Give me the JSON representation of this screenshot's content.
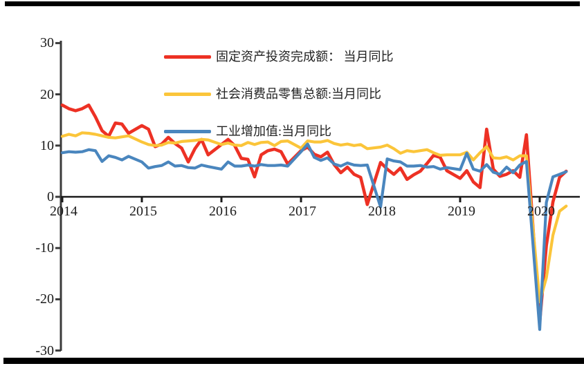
{
  "chart_data": {
    "type": "line",
    "title": "",
    "xlabel": "",
    "ylabel": "",
    "ylim": [
      -30,
      30
    ],
    "grid": false,
    "legend_position": "inside-top-left",
    "y_ticks": [
      "30",
      "20",
      "10",
      "0",
      "-10",
      "-20",
      "-30"
    ],
    "y_tick_values": [
      30,
      20,
      10,
      0,
      -10,
      -20,
      -30
    ],
    "x_ticks": [
      "2014",
      "2015",
      "2016",
      "2017",
      "2018",
      "2019",
      "2020"
    ],
    "x_tick_years": [
      2014,
      2015,
      2016,
      2017,
      2018,
      2019,
      2020
    ],
    "months": [
      "2014-02",
      "2014-03",
      "2014-04",
      "2014-05",
      "2014-06",
      "2014-07",
      "2014-08",
      "2014-09",
      "2014-10",
      "2014-11",
      "2014-12",
      "2015-02",
      "2015-03",
      "2015-04",
      "2015-05",
      "2015-06",
      "2015-07",
      "2015-08",
      "2015-09",
      "2015-10",
      "2015-11",
      "2015-12",
      "2016-02",
      "2016-03",
      "2016-04",
      "2016-05",
      "2016-06",
      "2016-07",
      "2016-08",
      "2016-09",
      "2016-10",
      "2016-11",
      "2016-12",
      "2017-02",
      "2017-03",
      "2017-04",
      "2017-05",
      "2017-06",
      "2017-07",
      "2017-08",
      "2017-09",
      "2017-10",
      "2017-11",
      "2017-12",
      "2018-02",
      "2018-03",
      "2018-04",
      "2018-05",
      "2018-06",
      "2018-07",
      "2018-08",
      "2018-09",
      "2018-10",
      "2018-11",
      "2018-12",
      "2019-02",
      "2019-03",
      "2019-04",
      "2019-05",
      "2019-06",
      "2019-07",
      "2019-08",
      "2019-09",
      "2019-10",
      "2019-11",
      "2019-12",
      "2020-02",
      "2020-03",
      "2020-04",
      "2020-05",
      "2020-06"
    ],
    "series": [
      {
        "name": "固定资产投资完成额： 当月同比",
        "color": "#ed3124",
        "values": [
          17.9,
          17.2,
          16.8,
          17.2,
          17.9,
          15.6,
          12.9,
          11.8,
          14.4,
          14.2,
          12.4,
          13.9,
          13.2,
          9.8,
          10.3,
          11.6,
          10.4,
          9.5,
          6.8,
          9.4,
          11.2,
          8.2,
          10.2,
          11.2,
          10.0,
          7.5,
          7.3,
          3.9,
          8.2,
          9.0,
          9.3,
          8.8,
          6.4,
          9.0,
          9.7,
          8.3,
          7.8,
          8.7,
          6.3,
          4.7,
          5.8,
          4.4,
          3.8,
          -1.5,
          6.7,
          5.4,
          4.4,
          5.6,
          3.4,
          4.3,
          5.0,
          6.5,
          8.1,
          7.7,
          5.1,
          3.6,
          5.1,
          2.9,
          1.8,
          13.2,
          5.4,
          4.0,
          4.4,
          5.1,
          3.8,
          12.1,
          -24.5,
          -9.5,
          -1.0,
          3.8,
          5.0
        ]
      },
      {
        "name": "社会消费品零售总额:当月同比",
        "color": "#fbc53a",
        "values": [
          11.8,
          12.2,
          11.9,
          12.5,
          12.4,
          12.2,
          11.9,
          11.6,
          11.5,
          11.7,
          11.9,
          10.7,
          10.2,
          10.0,
          10.1,
          10.6,
          10.5,
          10.8,
          10.9,
          11.0,
          11.2,
          11.1,
          10.2,
          10.5,
          10.1,
          10.0,
          10.6,
          10.2,
          10.6,
          10.7,
          10.0,
          10.8,
          10.9,
          9.5,
          10.9,
          10.7,
          10.7,
          11.0,
          10.4,
          10.1,
          10.3,
          10.0,
          10.2,
          9.4,
          9.7,
          10.1,
          9.4,
          8.5,
          9.0,
          8.8,
          9.0,
          9.2,
          8.6,
          8.1,
          8.2,
          8.2,
          8.7,
          7.2,
          8.6,
          9.8,
          7.6,
          7.5,
          7.8,
          7.2,
          8.0,
          8.0,
          -20.5,
          -15.8,
          -7.5,
          -2.8,
          -1.8
        ]
      },
      {
        "name": "工业增加值:当月同比",
        "color": "#4a86be",
        "values": [
          8.6,
          8.8,
          8.7,
          8.8,
          9.2,
          9.0,
          6.9,
          8.0,
          7.7,
          7.2,
          7.9,
          6.8,
          5.6,
          5.9,
          6.1,
          6.8,
          6.0,
          6.1,
          5.7,
          5.6,
          6.2,
          5.9,
          5.4,
          6.8,
          6.0,
          6.0,
          6.2,
          6.0,
          6.3,
          6.1,
          6.1,
          6.2,
          6.0,
          8.8,
          10.3,
          7.7,
          7.1,
          7.6,
          6.4,
          6.0,
          6.6,
          6.2,
          6.1,
          6.2,
          -2.0,
          7.4,
          7.0,
          6.8,
          6.0,
          6.0,
          6.1,
          5.8,
          5.9,
          5.4,
          5.7,
          5.3,
          8.5,
          5.4,
          5.0,
          6.3,
          4.8,
          4.4,
          5.8,
          4.7,
          6.2,
          6.9,
          -25.9,
          -1.1,
          3.9,
          4.4,
          4.9
        ]
      }
    ],
    "axis_color": "#3a3a3a",
    "zero_line_color": "#1a1a1a",
    "label_color": "#1c1c1c"
  }
}
